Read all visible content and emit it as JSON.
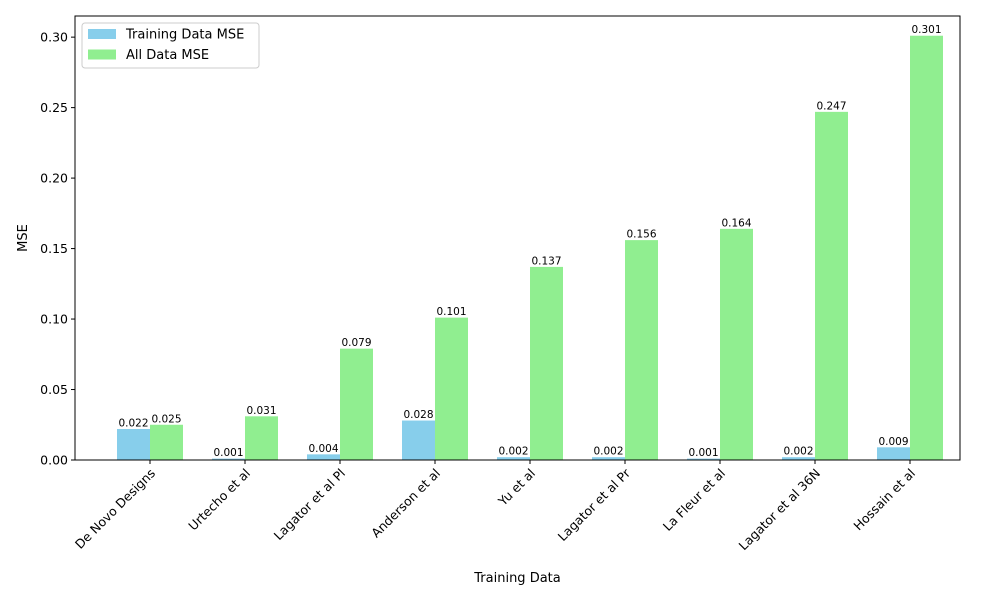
{
  "chart_data": {
    "type": "bar",
    "xlabel": "Training Data",
    "ylabel": "MSE",
    "ylim": [
      0,
      0.315
    ],
    "yticks": [
      "0.00",
      "0.05",
      "0.10",
      "0.15",
      "0.20",
      "0.25",
      "0.30"
    ],
    "ytick_values": [
      0,
      0.05,
      0.1,
      0.15,
      0.2,
      0.25,
      0.3
    ],
    "categories": [
      "De Novo Designs",
      "Urtecho et al",
      "Lagator et al Pl",
      "Anderson et al",
      "Yu et al",
      "Lagator et al Pr",
      "La Fleur et al",
      "Lagator et al 36N",
      "Hossain et al"
    ],
    "series": [
      {
        "name": "Training Data MSE",
        "color": "#87ceeb",
        "values": [
          0.022,
          0.001,
          0.004,
          0.028,
          0.002,
          0.002,
          0.001,
          0.002,
          0.009
        ],
        "labels": [
          "0.022",
          "0.001",
          "0.004",
          "0.028",
          "0.002",
          "0.002",
          "0.001",
          "0.002",
          "0.009"
        ]
      },
      {
        "name": "All Data MSE",
        "color": "#90ee90",
        "values": [
          0.025,
          0.031,
          0.079,
          0.101,
          0.137,
          0.156,
          0.164,
          0.247,
          0.301
        ],
        "labels": [
          "0.025",
          "0.031",
          "0.079",
          "0.101",
          "0.137",
          "0.156",
          "0.164",
          "0.247",
          "0.301"
        ]
      }
    ],
    "grid": false,
    "legend_position": "top-left"
  }
}
